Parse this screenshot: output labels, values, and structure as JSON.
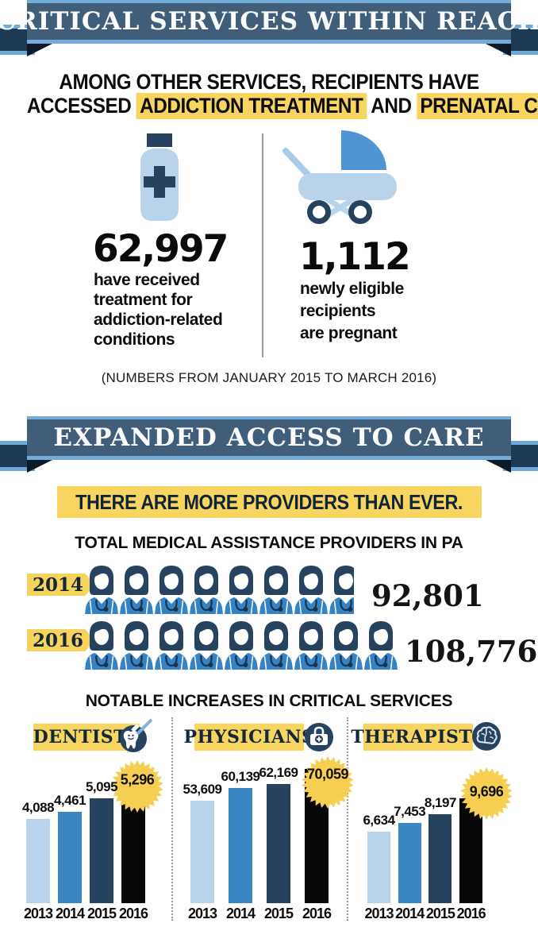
{
  "banner1": {
    "title": "CRITICAL SERVICES WITHIN REACH"
  },
  "headline": {
    "line1": "AMONG OTHER SERVICES, RECIPIENTS HAVE",
    "line2_pre": "ACCESSED",
    "highlight1": "ADDICTION TREATMENT",
    "line2_mid": "AND",
    "highlight2": "PRENATAL CARE",
    "line2_end": "."
  },
  "stats": {
    "left": {
      "icon": "medicine-bottle-icon",
      "value": "62,997",
      "lines": [
        "have received",
        "treatment for",
        "addiction-related",
        "conditions"
      ]
    },
    "right": {
      "icon": "baby-carriage-icon",
      "value": "1,112",
      "lines": [
        "newly eligible",
        "recipients",
        "are pregnant"
      ]
    },
    "caption": "(NUMBERS FROM JANUARY 2015 TO MARCH 2016)"
  },
  "banner2": {
    "title": "EXPANDED ACCESS TO CARE"
  },
  "providers": {
    "tagline": "THERE ARE MORE PROVIDERS THAN EVER.",
    "title": "TOTAL MEDICAL ASSISTANCE PROVIDERS IN PA",
    "rows": [
      {
        "year": "2014",
        "label": "92,801",
        "value": 92801,
        "icon_count": 8
      },
      {
        "year": "2016",
        "label": "108,776",
        "value": 108776,
        "icon_count": 9
      }
    ]
  },
  "increases_title": "NOTABLE INCREASES IN CRITICAL SERVICES",
  "chart_data": [
    {
      "id": "providers-pictogram",
      "type": "pictogram",
      "title": "TOTAL MEDICAL ASSISTANCE PROVIDERS IN PA",
      "icon": "female-doctor-icon",
      "categories": [
        "2014",
        "2016"
      ],
      "values": [
        92801,
        108776
      ],
      "labels": [
        "92,801",
        "108,776"
      ]
    },
    {
      "id": "dentists",
      "type": "bar",
      "title": "DENTISTS",
      "icon": "tooth-icon",
      "categories": [
        "2013",
        "2014",
        "2015",
        "2016"
      ],
      "values": [
        4088,
        4461,
        5095,
        5296
      ],
      "labels": [
        "4,088",
        "4,461",
        "5,095",
        "5,296"
      ],
      "highlight_index": 3,
      "bar_colors": [
        "#b9d4ea",
        "#3a86c2",
        "#27425f",
        "#070707"
      ],
      "ylim": [
        0,
        5296
      ],
      "grid": false
    },
    {
      "id": "physicians",
      "type": "bar",
      "title": "PHYSICIANS",
      "icon": "medical-bag-icon",
      "categories": [
        "2013",
        "2014",
        "2015",
        "2016"
      ],
      "values": [
        53609,
        60139,
        62169,
        70059
      ],
      "labels": [
        "53,609",
        "60,139",
        "62,169",
        "70,059"
      ],
      "highlight_index": 3,
      "bar_colors": [
        "#b9d4ea",
        "#3a86c2",
        "#27425f",
        "#070707"
      ],
      "ylim": [
        0,
        70059
      ],
      "grid": false
    },
    {
      "id": "therapists",
      "type": "bar",
      "title": "THERAPISTS",
      "icon": "brain-icon",
      "categories": [
        "2013",
        "2014",
        "2015",
        "2016"
      ],
      "values": [
        6634,
        7453,
        8197,
        9696
      ],
      "labels": [
        "6,634",
        "7,453",
        "8,197",
        "9,696"
      ],
      "highlight_index": 3,
      "bar_colors": [
        "#b9d4ea",
        "#3a86c2",
        "#27425f",
        "#070707"
      ],
      "ylim": [
        0,
        9696
      ],
      "grid": false
    }
  ],
  "colors": {
    "ribbon_bar": "#405d7a",
    "ribbon_stripe": "#74abd9",
    "ribbon_tail": "#1d3a55",
    "ribbon_fold": "#0c1a28",
    "highlight_yellow": "#f8d55e",
    "starburst_yellow": "#f6cf52",
    "light_blue": "#b9d4ea",
    "mid_blue": "#3a86c2",
    "navy": "#27425f",
    "bar_black": "#070707"
  }
}
